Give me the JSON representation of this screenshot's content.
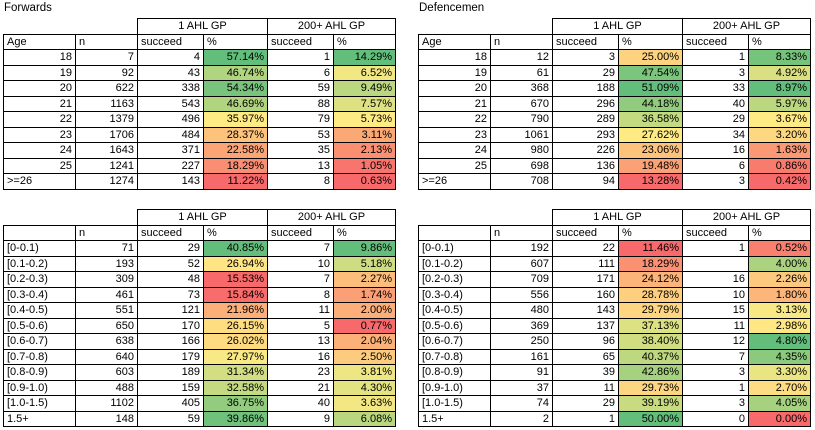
{
  "colors": {
    "background": "#FFFFFF",
    "border": "#000000",
    "text": "#000000",
    "scale_min_red": "#F8696B",
    "scale_mid_yellow": "#FFEB84",
    "scale_max_green": "#63BE7B"
  },
  "tables": [
    {
      "title": "Forwards",
      "group_headers": [
        "1 AHL GP",
        "200+ AHL GP"
      ],
      "columns": [
        "Age",
        "n",
        "succeed",
        "%",
        "succeed",
        "%"
      ],
      "rows": [
        {
          "label": "18",
          "n": "7",
          "succeed1": "4",
          "pct1": "57.14%",
          "pct1_color": "#63BE7B",
          "succeed2": "1",
          "pct2": "14.29%",
          "pct2_color": "#63BE7B"
        },
        {
          "label": "19",
          "n": "92",
          "succeed1": "43",
          "pct1": "46.74%",
          "pct1_color": "#B0D47F",
          "succeed2": "6",
          "pct2": "6.52%",
          "pct2_color": "#F1E783"
        },
        {
          "label": "20",
          "n": "622",
          "succeed1": "338",
          "pct1": "54.34%",
          "pct1_color": "#78C47C",
          "succeed2": "59",
          "pct2": "9.49%",
          "pct2_color": "#BBD780"
        },
        {
          "label": "21",
          "n": "1163",
          "succeed1": "543",
          "pct1": "46.69%",
          "pct1_color": "#B1D47F",
          "succeed2": "88",
          "pct2": "7.57%",
          "pct2_color": "#DEE182"
        },
        {
          "label": "22",
          "n": "1379",
          "succeed1": "496",
          "pct1": "35.97%",
          "pct1_color": "#FFEB84",
          "succeed2": "79",
          "pct2": "5.73%",
          "pct2_color": "#FFEB84"
        },
        {
          "label": "23",
          "n": "1706",
          "succeed1": "484",
          "pct1": "28.37%",
          "pct1_color": "#FDC37C",
          "succeed2": "53",
          "pct2": "3.11%",
          "pct2_color": "#FBA877"
        },
        {
          "label": "24",
          "n": "1643",
          "succeed1": "371",
          "pct1": "22.58%",
          "pct1_color": "#FBA576",
          "succeed2": "35",
          "pct2": "2.13%",
          "pct2_color": "#FA8F72"
        },
        {
          "label": "25",
          "n": "1241",
          "succeed1": "227",
          "pct1": "18.29%",
          "pct1_color": "#FA8E72",
          "succeed2": "13",
          "pct2": "1.05%",
          "pct2_color": "#F9746D"
        },
        {
          "label": ">=26",
          "n": "1274",
          "succeed1": "143",
          "pct1": "11.22%",
          "pct1_color": "#F8696B",
          "succeed2": "8",
          "pct2": "0.63%",
          "pct2_color": "#F8696B"
        }
      ]
    },
    {
      "title": "Defencemen",
      "group_headers": [
        "1 AHL GP",
        "200+ AHL GP"
      ],
      "columns": [
        "Age",
        "n",
        "succeed",
        "%",
        "succeed",
        "%"
      ],
      "rows": [
        {
          "label": "18",
          "n": "12",
          "succeed1": "3",
          "pct1": "25.00%",
          "pct1_color": "#FED37F",
          "succeed2": "1",
          "pct2": "8.33%",
          "pct2_color": "#76C37C"
        },
        {
          "label": "19",
          "n": "61",
          "succeed1": "29",
          "pct1": "47.54%",
          "pct1_color": "#7BC57C",
          "succeed2": "3",
          "pct2": "4.92%",
          "pct2_color": "#DAE082"
        },
        {
          "label": "20",
          "n": "368",
          "succeed1": "188",
          "pct1": "51.09%",
          "pct1_color": "#63BE7B",
          "succeed2": "33",
          "pct2": "8.97%",
          "pct2_color": "#63BE7B"
        },
        {
          "label": "21",
          "n": "670",
          "succeed1": "296",
          "pct1": "44.18%",
          "pct1_color": "#91CB7E",
          "succeed2": "40",
          "pct2": "5.97%",
          "pct2_color": "#BBD780"
        },
        {
          "label": "22",
          "n": "790",
          "succeed1": "289",
          "pct1": "36.58%",
          "pct1_color": "#C3DA81",
          "succeed2": "29",
          "pct2": "3.67%",
          "pct2_color": "#FFEB84"
        },
        {
          "label": "23",
          "n": "1061",
          "succeed1": "293",
          "pct1": "27.62%",
          "pct1_color": "#FFEB84",
          "succeed2": "34",
          "pct2": "3.20%",
          "pct2_color": "#FED880"
        },
        {
          "label": "24",
          "n": "980",
          "succeed1": "226",
          "pct1": "23.06%",
          "pct1_color": "#FDC27C",
          "succeed2": "16",
          "pct2": "1.63%",
          "pct2_color": "#FB9974"
        },
        {
          "label": "25",
          "n": "698",
          "succeed1": "136",
          "pct1": "19.48%",
          "pct1_color": "#FBA176",
          "succeed2": "6",
          "pct2": "0.86%",
          "pct2_color": "#F97B6E"
        },
        {
          "label": ">=26",
          "n": "708",
          "succeed1": "94",
          "pct1": "13.28%",
          "pct1_color": "#F8696B",
          "succeed2": "3",
          "pct2": "0.42%",
          "pct2_color": "#F8696B"
        }
      ]
    },
    {
      "title": "",
      "group_headers": [
        "1 AHL GP",
        "200+ AHL GP"
      ],
      "columns": [
        "",
        "n",
        "succeed",
        "%",
        "succeed",
        "%"
      ],
      "rows": [
        {
          "label": "[0-0.1)",
          "n": "71",
          "succeed1": "29",
          "pct1": "40.85%",
          "pct1_color": "#63BE7B",
          "succeed2": "7",
          "pct2": "9.86%",
          "pct2_color": "#63BE7B"
        },
        {
          "label": "[0.1-0.2)",
          "n": "193",
          "succeed1": "52",
          "pct1": "26.94%",
          "pct1_color": "#FFE583",
          "succeed2": "10",
          "pct2": "5.18%",
          "pct2_color": "#CEDD81"
        },
        {
          "label": "[0.2-0.3)",
          "n": "309",
          "succeed1": "48",
          "pct1": "15.53%",
          "pct1_color": "#F8696B",
          "succeed2": "7",
          "pct2": "2.27%",
          "pct2_color": "#FDBE7B"
        },
        {
          "label": "[0.3-0.4)",
          "n": "461",
          "succeed1": "73",
          "pct1": "15.84%",
          "pct1_color": "#F86C6C",
          "succeed2": "8",
          "pct2": "1.74%",
          "pct2_color": "#FBA076"
        },
        {
          "label": "[0.4-0.5)",
          "n": "551",
          "succeed1": "121",
          "pct1": "21.96%",
          "pct1_color": "#FCAF78",
          "succeed2": "11",
          "pct2": "2.00%",
          "pct2_color": "#FCAF78"
        },
        {
          "label": "[0.5-0.6)",
          "n": "650",
          "succeed1": "170",
          "pct1": "26.15%",
          "pct1_color": "#FEDD81",
          "succeed2": "5",
          "pct2": "0.77%",
          "pct2_color": "#F8696B"
        },
        {
          "label": "[0.6-0.7)",
          "n": "638",
          "succeed1": "166",
          "pct1": "26.02%",
          "pct1_color": "#FEDB81",
          "succeed2": "13",
          "pct2": "2.04%",
          "pct2_color": "#FCB179"
        },
        {
          "label": "[0.7-0.8)",
          "n": "640",
          "succeed1": "179",
          "pct1": "27.97%",
          "pct1_color": "#F9E984",
          "succeed2": "16",
          "pct2": "2.50%",
          "pct2_color": "#FDCB7E"
        },
        {
          "label": "[0.8-0.9)",
          "n": "603",
          "succeed1": "189",
          "pct1": "31.34%",
          "pct1_color": "#D2DE81",
          "succeed2": "23",
          "pct2": "3.81%",
          "pct2_color": "#EEE683"
        },
        {
          "label": "[0.9-1.0)",
          "n": "488",
          "succeed1": "159",
          "pct1": "32.58%",
          "pct1_color": "#C3DA81",
          "succeed2": "21",
          "pct2": "4.30%",
          "pct2_color": "#E3E382"
        },
        {
          "label": "[1.0-1.5)",
          "n": "1102",
          "succeed1": "405",
          "pct1": "36.75%",
          "pct1_color": "#93CC7E",
          "succeed2": "40",
          "pct2": "3.63%",
          "pct2_color": "#F2E783"
        },
        {
          "label": "1.5+",
          "n": "148",
          "succeed1": "59",
          "pct1": "39.86%",
          "pct1_color": "#6FC17C",
          "succeed2": "9",
          "pct2": "6.08%",
          "pct2_color": "#BAD780"
        }
      ]
    },
    {
      "title": "",
      "group_headers": [
        "1 AHL GP",
        "200+ AHL GP"
      ],
      "columns": [
        "",
        "n",
        "succeed",
        "%",
        "succeed",
        "%"
      ],
      "rows": [
        {
          "label": "[0-0.1)",
          "n": "192",
          "succeed1": "22",
          "pct1": "11.46%",
          "pct1_color": "#F8696B",
          "succeed2": "1",
          "pct2": "0.52%",
          "pct2_color": "#F97F6F"
        },
        {
          "label": "[0.1-0.2)",
          "n": "607",
          "succeed1": "111",
          "pct1": "18.29%",
          "pct1_color": "#FA9173",
          "succeed2": "",
          "pct2": "4.00%",
          "pct2_color": "#ABD37F"
        },
        {
          "label": "[0.2-0.3)",
          "n": "709",
          "succeed1": "171",
          "pct1": "24.12%",
          "pct1_color": "#FCB479",
          "succeed2": "16",
          "pct2": "2.26%",
          "pct2_color": "#FDC97E"
        },
        {
          "label": "[0.3-0.4)",
          "n": "556",
          "succeed1": "160",
          "pct1": "28.78%",
          "pct1_color": "#FECF7F",
          "succeed2": "10",
          "pct2": "1.80%",
          "pct2_color": "#FCB67A"
        },
        {
          "label": "[0.4-0.5)",
          "n": "480",
          "succeed1": "143",
          "pct1": "29.79%",
          "pct1_color": "#FED580",
          "succeed2": "15",
          "pct2": "3.13%",
          "pct2_color": "#F8E984"
        },
        {
          "label": "[0.5-0.6)",
          "n": "369",
          "succeed1": "137",
          "pct1": "37.13%",
          "pct1_color": "#DCE182",
          "succeed2": "11",
          "pct2": "2.98%",
          "pct2_color": "#FFE883"
        },
        {
          "label": "[0.6-0.7)",
          "n": "250",
          "succeed1": "96",
          "pct1": "38.40%",
          "pct1_color": "#D0DE81",
          "succeed2": "12",
          "pct2": "4.80%",
          "pct2_color": "#63BE7B"
        },
        {
          "label": "[0.7-0.8)",
          "n": "161",
          "succeed1": "65",
          "pct1": "40.37%",
          "pct1_color": "#BED880",
          "succeed2": "7",
          "pct2": "4.35%",
          "pct2_color": "#8BCA7D"
        },
        {
          "label": "[0.8-0.9)",
          "n": "91",
          "succeed1": "39",
          "pct1": "42.86%",
          "pct1_color": "#A6D17F",
          "succeed2": "3",
          "pct2": "3.30%",
          "pct2_color": "#E9E583"
        },
        {
          "label": "[0.9-1.0)",
          "n": "37",
          "succeed1": "11",
          "pct1": "29.73%",
          "pct1_color": "#FED580",
          "succeed2": "1",
          "pct2": "2.70%",
          "pct2_color": "#FEDC81"
        },
        {
          "label": "[1.0-1.5)",
          "n": "74",
          "succeed1": "29",
          "pct1": "39.19%",
          "pct1_color": "#C9DB81",
          "succeed2": "3",
          "pct2": "4.05%",
          "pct2_color": "#A6D17F"
        },
        {
          "label": "1.5+",
          "n": "2",
          "succeed1": "1",
          "pct1": "50.00%",
          "pct1_color": "#63BE7B",
          "succeed2": "0",
          "pct2": "0.00%",
          "pct2_color": "#F8696B"
        }
      ]
    }
  ]
}
